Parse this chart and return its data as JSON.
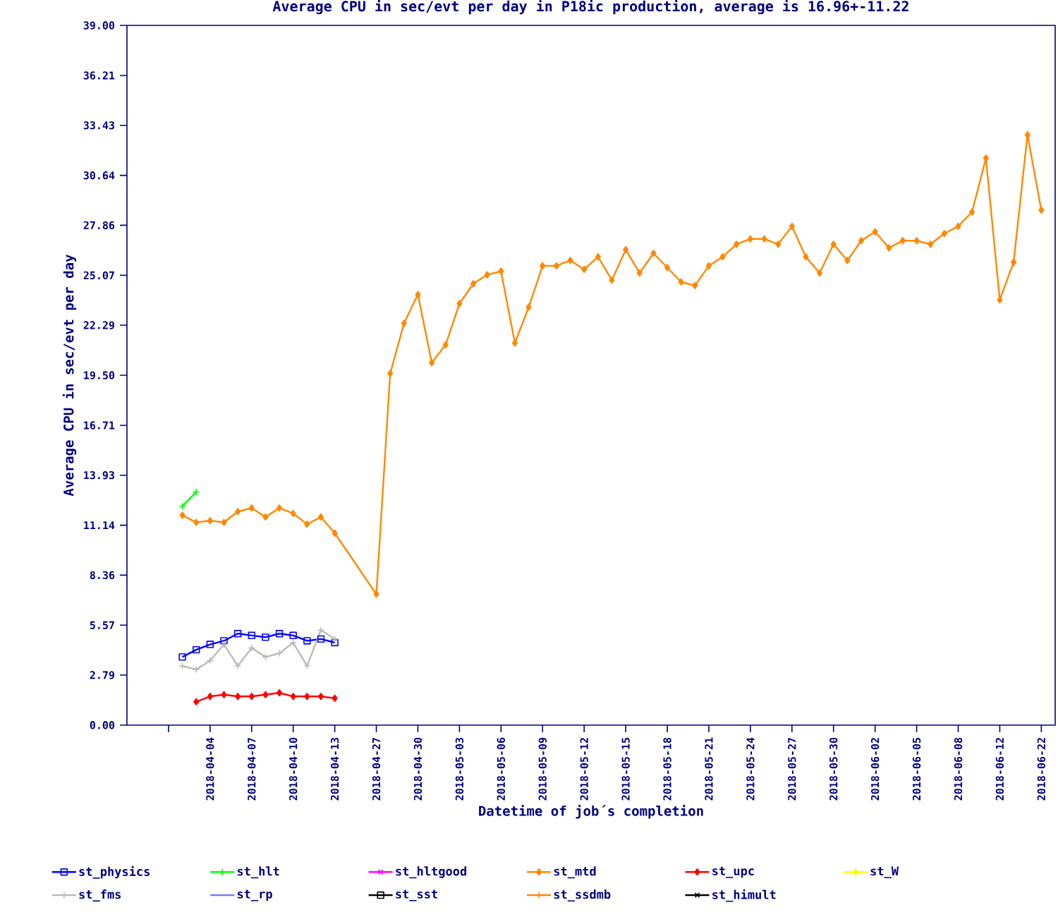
{
  "chart_data": {
    "type": "line",
    "title": "Average CPU in sec/evt per day in P18ic production, average is 16.96+-11.22",
    "xlabel": "Datetime of job´s completion",
    "ylabel": "Average CPU in sec/evt per day",
    "categories": [
      null,
      null,
      null,
      null,
      null,
      null,
      "2018-04-04",
      null,
      null,
      "2018-04-07",
      null,
      null,
      "2018-04-10",
      null,
      null,
      "2018-04-13",
      null,
      null,
      "2018-04-27",
      null,
      null,
      "2018-04-30",
      null,
      null,
      "2018-05-03",
      null,
      null,
      "2018-05-06",
      null,
      null,
      "2018-05-09",
      null,
      null,
      "2018-05-12",
      null,
      null,
      "2018-05-15",
      null,
      null,
      "2018-05-18",
      null,
      null,
      "2018-05-21",
      null,
      null,
      "2018-05-24",
      null,
      null,
      "2018-05-27",
      null,
      null,
      "2018-05-30",
      null,
      null,
      "2018-06-02",
      null,
      null,
      "2018-06-05",
      null,
      null,
      "2018-06-08",
      null,
      null,
      "2018-06-12",
      null,
      null,
      "2018-06-22"
    ],
    "ylim": [
      0,
      39
    ],
    "yticks": [
      {
        "value": 0,
        "label": "0.00"
      },
      2.79,
      5.57,
      8.36,
      11.14,
      13.93,
      16.71,
      {
        "value": 19.5,
        "label": "19.50"
      },
      22.29,
      25.07,
      27.86,
      30.64,
      33.43,
      36.21,
      {
        "value": 39,
        "label": "39.00"
      }
    ],
    "legend": "bottom",
    "series": [
      {
        "name": "st_physics",
        "color": "#0000ff",
        "marker": "square",
        "values": [
          null,
          null,
          null,
          null,
          3.8,
          4.2,
          4.5,
          4.7,
          5.1,
          5.0,
          4.9,
          5.1,
          5.0,
          4.7,
          4.8,
          4.6,
          null,
          null,
          null,
          null,
          null,
          null,
          null,
          null,
          null,
          null,
          null,
          null,
          null,
          null,
          null,
          null,
          null,
          null,
          null,
          null,
          null,
          null,
          null,
          null,
          null,
          null,
          null,
          null,
          null,
          null,
          null,
          null,
          null,
          null,
          null,
          null,
          null,
          null,
          null,
          null,
          null,
          null,
          null,
          null,
          null,
          null,
          null,
          null,
          null,
          null,
          null
        ]
      },
      {
        "name": "st_hlt",
        "color": "#00ff00",
        "marker": "cross",
        "values": [
          null,
          null,
          null,
          null,
          12.2,
          13.0,
          null,
          null,
          null,
          null,
          null,
          null,
          null,
          null,
          null,
          null,
          null,
          null,
          null,
          null,
          null,
          null,
          null,
          null,
          null,
          null,
          null,
          null,
          null,
          null,
          null,
          null,
          null,
          null,
          null,
          null,
          null,
          null,
          null,
          null,
          null,
          null,
          null,
          null,
          null,
          null,
          null,
          null,
          null,
          null,
          null,
          null,
          null,
          null,
          null,
          null,
          null,
          null,
          null,
          null,
          null,
          null,
          null,
          null,
          null,
          null,
          null
        ]
      },
      {
        "name": "st_hltgood",
        "color": "#ff00ff",
        "marker": "star",
        "values": [
          null,
          null,
          null,
          null,
          null,
          null,
          null,
          null,
          null,
          null,
          null,
          null,
          null,
          null,
          null,
          null,
          null,
          null,
          null,
          null,
          null,
          null,
          null,
          null,
          null,
          null,
          null,
          null,
          null,
          null,
          null,
          null,
          null,
          null,
          null,
          null,
          null,
          null,
          null,
          null,
          null,
          null,
          null,
          null,
          null,
          null,
          null,
          null,
          null,
          null,
          null,
          null,
          null,
          null,
          null,
          null,
          null,
          null,
          null,
          null,
          null,
          null,
          null,
          null,
          null,
          null,
          null
        ]
      },
      {
        "name": "st_mtd",
        "color": "#ff8800",
        "marker": "diamond",
        "values": [
          null,
          null,
          null,
          null,
          11.7,
          11.3,
          11.4,
          11.3,
          11.9,
          12.1,
          11.6,
          12.1,
          11.8,
          11.2,
          11.6,
          10.7,
          null,
          null,
          7.3,
          19.6,
          22.4,
          24.0,
          20.2,
          21.2,
          23.5,
          24.6,
          25.1,
          25.3,
          21.3,
          23.3,
          25.6,
          25.6,
          25.9,
          25.4,
          26.1,
          24.8,
          26.5,
          25.2,
          26.3,
          25.5,
          24.7,
          24.5,
          25.6,
          26.1,
          26.8,
          27.1,
          27.1,
          26.8,
          27.8,
          26.1,
          25.2,
          26.8,
          25.9,
          27.0,
          27.5,
          26.6,
          27.0,
          27.0,
          26.8,
          27.4,
          27.8,
          28.6,
          31.6,
          23.7,
          25.8,
          32.9,
          28.7
        ]
      },
      {
        "name": "st_upc",
        "color": "#ff0000",
        "marker": "diamond",
        "values": [
          null,
          null,
          null,
          null,
          null,
          1.3,
          1.6,
          1.7,
          1.6,
          1.6,
          1.7,
          1.8,
          1.6,
          1.6,
          1.6,
          1.5,
          null,
          null,
          null,
          null,
          null,
          null,
          null,
          null,
          null,
          null,
          null,
          null,
          null,
          null,
          null,
          null,
          null,
          null,
          null,
          null,
          null,
          null,
          null,
          null,
          null,
          null,
          null,
          null,
          null,
          null,
          null,
          null,
          null,
          null,
          null,
          null,
          null,
          null,
          null,
          null,
          null,
          null,
          null,
          null,
          null,
          null,
          null,
          null,
          null,
          null,
          null
        ]
      },
      {
        "name": "st_W",
        "color": "#ffff00",
        "marker": "diamond",
        "values": [
          null,
          null,
          null,
          null,
          null,
          null,
          null,
          null,
          null,
          null,
          null,
          null,
          null,
          null,
          null,
          null,
          null,
          null,
          null,
          null,
          null,
          null,
          null,
          null,
          null,
          null,
          null,
          null,
          null,
          null,
          null,
          null,
          null,
          null,
          null,
          null,
          null,
          null,
          null,
          null,
          null,
          null,
          null,
          null,
          null,
          null,
          null,
          null,
          null,
          null,
          null,
          null,
          null,
          null,
          null,
          null,
          null,
          null,
          null,
          null,
          null,
          null,
          null,
          null,
          null,
          null,
          null
        ]
      },
      {
        "name": "st_fms",
        "color": "#bbbbbb",
        "marker": "cross",
        "values": [
          null,
          null,
          null,
          null,
          3.3,
          3.1,
          3.6,
          4.5,
          3.3,
          4.3,
          3.8,
          4.0,
          4.6,
          3.3,
          5.3,
          4.8,
          null,
          null,
          null,
          null,
          null,
          null,
          null,
          null,
          null,
          null,
          null,
          null,
          null,
          null,
          null,
          null,
          null,
          null,
          null,
          null,
          null,
          null,
          null,
          null,
          null,
          null,
          null,
          null,
          null,
          null,
          null,
          null,
          null,
          null,
          null,
          null,
          null,
          null,
          null,
          null,
          null,
          null,
          null,
          null,
          null,
          null,
          null,
          null,
          null,
          null,
          null
        ]
      },
      {
        "name": "st_rp",
        "color": "#7777ff",
        "marker": "none",
        "values": [
          null,
          null,
          null,
          null,
          null,
          null,
          null,
          null,
          null,
          null,
          null,
          null,
          null,
          null,
          null,
          null,
          null,
          null,
          null,
          null,
          null,
          null,
          null,
          null,
          null,
          null,
          null,
          null,
          null,
          null,
          null,
          null,
          null,
          null,
          null,
          null,
          null,
          null,
          null,
          null,
          null,
          null,
          null,
          null,
          null,
          null,
          null,
          null,
          null,
          null,
          null,
          null,
          null,
          null,
          null,
          null,
          null,
          null,
          null,
          null,
          null,
          null,
          null,
          null,
          null,
          null,
          null
        ]
      },
      {
        "name": "st_sst",
        "color": "#000000",
        "marker": "square",
        "values": [
          null,
          null,
          null,
          null,
          null,
          null,
          null,
          null,
          null,
          null,
          null,
          null,
          null,
          null,
          null,
          null,
          null,
          null,
          null,
          null,
          null,
          null,
          null,
          null,
          null,
          null,
          null,
          null,
          null,
          null,
          null,
          null,
          null,
          null,
          null,
          null,
          null,
          null,
          null,
          null,
          null,
          null,
          null,
          null,
          null,
          null,
          null,
          null,
          null,
          null,
          null,
          null,
          null,
          null,
          null,
          null,
          null,
          null,
          null,
          null,
          null,
          null,
          null,
          null,
          null,
          null,
          null
        ]
      },
      {
        "name": "st_ssdmb",
        "color": "#ff8800",
        "marker": "cross",
        "values": [
          null,
          null,
          null,
          null,
          null,
          null,
          null,
          null,
          null,
          null,
          null,
          null,
          null,
          null,
          null,
          null,
          null,
          null,
          null,
          null,
          null,
          null,
          null,
          null,
          null,
          null,
          null,
          null,
          null,
          null,
          null,
          null,
          null,
          null,
          null,
          null,
          null,
          null,
          null,
          null,
          null,
          null,
          null,
          null,
          null,
          null,
          null,
          null,
          null,
          null,
          null,
          null,
          null,
          null,
          null,
          null,
          null,
          null,
          null,
          null,
          null,
          null,
          null,
          null,
          null,
          null,
          null
        ]
      },
      {
        "name": "st_himult",
        "color": "#000000",
        "marker": "star",
        "values": [
          null,
          null,
          null,
          null,
          null,
          null,
          null,
          null,
          null,
          null,
          null,
          null,
          null,
          null,
          null,
          null,
          null,
          null,
          null,
          null,
          null,
          null,
          null,
          null,
          null,
          null,
          null,
          null,
          null,
          null,
          null,
          null,
          null,
          null,
          null,
          null,
          null,
          null,
          null,
          null,
          null,
          null,
          null,
          null,
          null,
          null,
          null,
          null,
          null,
          null,
          null,
          null,
          null,
          null,
          null,
          null,
          null,
          null,
          null,
          null,
          null,
          null,
          null,
          null,
          null,
          null,
          null
        ]
      }
    ]
  }
}
